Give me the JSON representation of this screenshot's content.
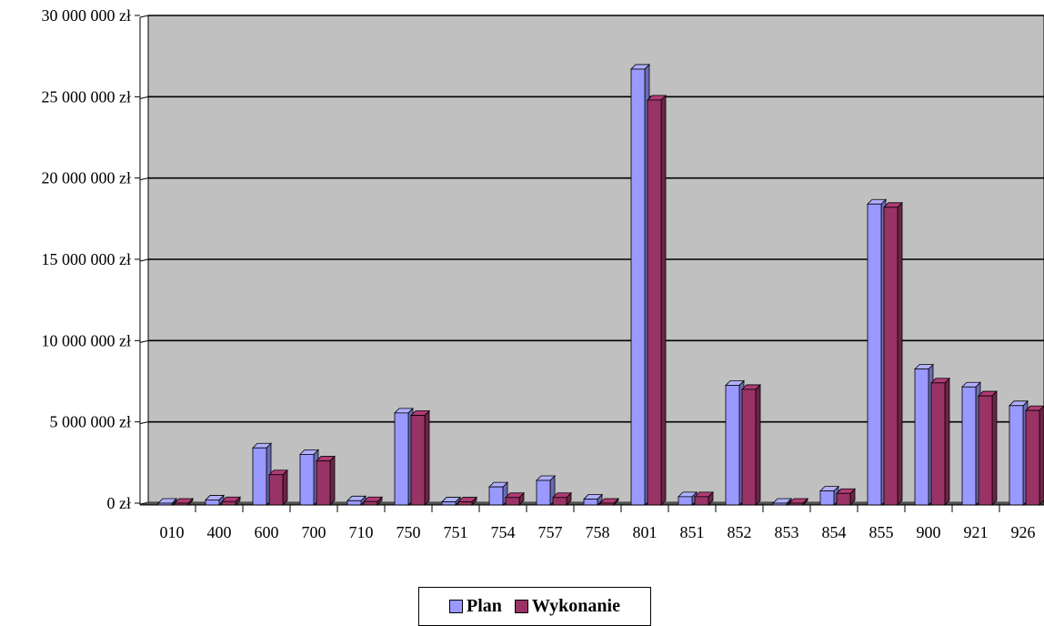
{
  "chart_data": {
    "type": "bar",
    "categories": [
      "010",
      "400",
      "600",
      "700",
      "710",
      "750",
      "751",
      "754",
      "757",
      "758",
      "801",
      "851",
      "852",
      "853",
      "854",
      "855",
      "900",
      "921",
      "926"
    ],
    "series": [
      {
        "name": "Plan",
        "color": "#9999ff",
        "values": [
          0,
          200000,
          3400000,
          3000000,
          150000,
          5550000,
          80000,
          1000000,
          1400000,
          250000,
          26700000,
          400000,
          7250000,
          0,
          750000,
          18400000,
          8250000,
          7150000,
          6000000
        ]
      },
      {
        "name": "Wykonanie",
        "color": "#993366",
        "values": [
          0,
          100000,
          1750000,
          2600000,
          100000,
          5400000,
          80000,
          350000,
          350000,
          0,
          24800000,
          400000,
          7000000,
          0,
          600000,
          18200000,
          7400000,
          6600000,
          5700000
        ]
      }
    ],
    "y_ticks": [
      "0 zł",
      "5 000 000 zł",
      "10 000 000 zł",
      "15 000 000 zł",
      "20 000 000 zł",
      "25 000 000 zł",
      "30 000 000 zł"
    ],
    "ylim": [
      0,
      30000000
    ],
    "grid": true,
    "legend_position": "bottom-center",
    "plot_background": "#c0c0c0"
  }
}
